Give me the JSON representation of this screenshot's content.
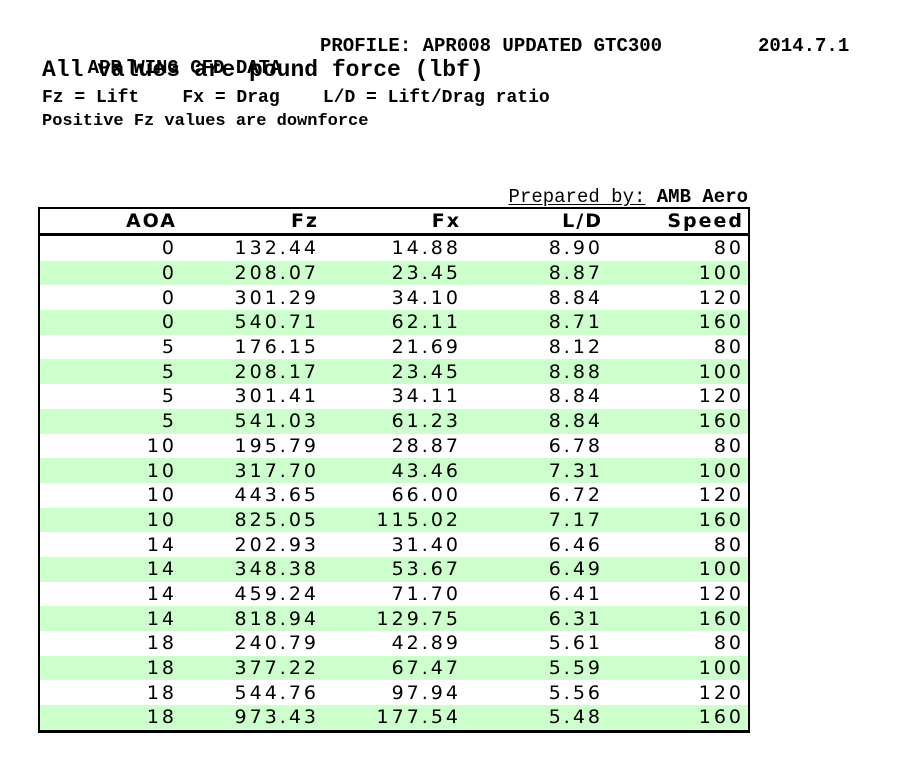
{
  "header": {
    "title": "APR WING CFD DATA",
    "profile": "PROFILE: APR008 UPDATED GTC300",
    "date": "2014.7.1",
    "units_note": "All values are pound force (lbf)",
    "legend": "Fz = Lift    Fx = Drag    L/D = Lift/Drag ratio",
    "note": "Positive Fz values are downforce"
  },
  "prepared_by": {
    "label": "Prepared by:",
    "value": "AMB Aero"
  },
  "colors": {
    "row_band_green": "#ccffcc",
    "border": "#000000",
    "text": "#000000",
    "background": "#ffffff"
  },
  "table": {
    "columns": [
      "AOA",
      "Fz",
      "Fx",
      "L/D",
      "Speed"
    ],
    "rows": [
      [
        "0",
        "132.44",
        "14.88",
        "8.90",
        "80"
      ],
      [
        "0",
        "208.07",
        "23.45",
        "8.87",
        "100"
      ],
      [
        "0",
        "301.29",
        "34.10",
        "8.84",
        "120"
      ],
      [
        "0",
        "540.71",
        "62.11",
        "8.71",
        "160"
      ],
      [
        "5",
        "176.15",
        "21.69",
        "8.12",
        "80"
      ],
      [
        "5",
        "208.17",
        "23.45",
        "8.88",
        "100"
      ],
      [
        "5",
        "301.41",
        "34.11",
        "8.84",
        "120"
      ],
      [
        "5",
        "541.03",
        "61.23",
        "8.84",
        "160"
      ],
      [
        "10",
        "195.79",
        "28.87",
        "6.78",
        "80"
      ],
      [
        "10",
        "317.70",
        "43.46",
        "7.31",
        "100"
      ],
      [
        "10",
        "443.65",
        "66.00",
        "6.72",
        "120"
      ],
      [
        "10",
        "825.05",
        "115.02",
        "7.17",
        "160"
      ],
      [
        "14",
        "202.93",
        "31.40",
        "6.46",
        "80"
      ],
      [
        "14",
        "348.38",
        "53.67",
        "6.49",
        "100"
      ],
      [
        "14",
        "459.24",
        "71.70",
        "6.41",
        "120"
      ],
      [
        "14",
        "818.94",
        "129.75",
        "6.31",
        "160"
      ],
      [
        "18",
        "240.79",
        "42.89",
        "5.61",
        "80"
      ],
      [
        "18",
        "377.22",
        "67.47",
        "5.59",
        "100"
      ],
      [
        "18",
        "544.76",
        "97.94",
        "5.56",
        "120"
      ],
      [
        "18",
        "973.43",
        "177.54",
        "5.48",
        "160"
      ]
    ]
  }
}
